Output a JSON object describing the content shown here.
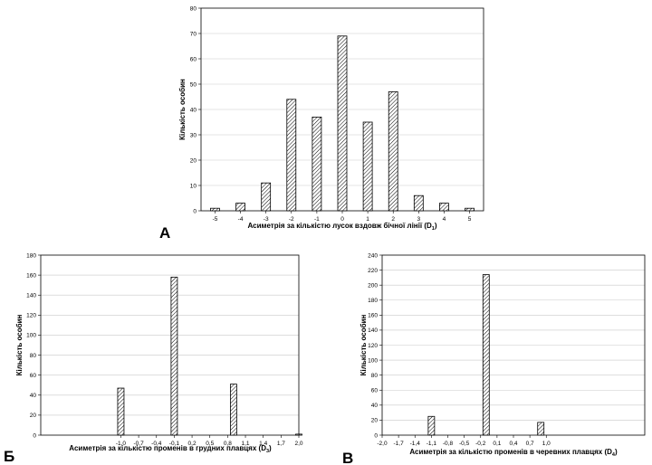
{
  "chart_data": [
    {
      "type": "bar",
      "panel_label": "А",
      "xlabel_main": "Асиметрія за кількістю лусок вздовж бічної лінії (D",
      "xlabel_sub": "1",
      "xlabel_end": ")",
      "ylabel": "Кількість особин",
      "ylim": [
        0,
        80
      ],
      "yticks": [
        "0",
        "10",
        "20",
        "30",
        "40",
        "50",
        "60",
        "70",
        "80"
      ],
      "xticks": [
        "-5",
        "-4",
        "-3",
        "-2",
        "-1",
        "0",
        "1",
        "2",
        "3",
        "4",
        "5"
      ],
      "categories": [
        -5,
        -4,
        -3,
        -2,
        -1,
        0,
        1,
        2,
        3,
        4,
        5
      ],
      "values": [
        1,
        3,
        11,
        44,
        37,
        69,
        35,
        47,
        6,
        3,
        1
      ],
      "grid": true
    },
    {
      "type": "bar",
      "panel_label": "Б",
      "xlabel_main": "Асиметрія за кількістю променів в грудних плавцях (D",
      "xlabel_sub": "3",
      "xlabel_end": ")",
      "ylabel": "Кількість особин",
      "ylim": [
        0,
        180
      ],
      "yticks": [
        "0",
        "20",
        "40",
        "60",
        "80",
        "100",
        "120",
        "140",
        "160",
        "180"
      ],
      "xticks": [
        "-1,0",
        "-0,7",
        "-0,4",
        "-0,1",
        "0,2",
        "0,5",
        "0,8",
        "1,1",
        "1,4",
        "1,7",
        "2,0"
      ],
      "categories": [
        -1,
        0,
        1,
        2
      ],
      "values": [
        47,
        158,
        51,
        1
      ],
      "grid": true
    },
    {
      "type": "bar",
      "panel_label": "В",
      "xlabel_main": "Асиметрія за кількістю променів в черевних плавцях (D",
      "xlabel_sub": "4",
      "xlabel_end": ")",
      "ylabel": "Кількість особин",
      "ylim": [
        0,
        240
      ],
      "yticks": [
        "0",
        "20",
        "40",
        "60",
        "80",
        "100",
        "120",
        "140",
        "160",
        "180",
        "200",
        "220",
        "240"
      ],
      "xticks": [
        "-2,0",
        "-1,7",
        "-1,4",
        "-1,1",
        "-0,8",
        "-0,5",
        "-0,2",
        "0,1",
        "0,4",
        "0,7",
        "1,0"
      ],
      "categories": [
        -1,
        0,
        1
      ],
      "values": [
        25,
        214,
        17
      ],
      "grid": true
    }
  ],
  "colors": {
    "grid": "#c9c9c9",
    "bar_stroke": "#000000",
    "background": "#ffffff"
  }
}
